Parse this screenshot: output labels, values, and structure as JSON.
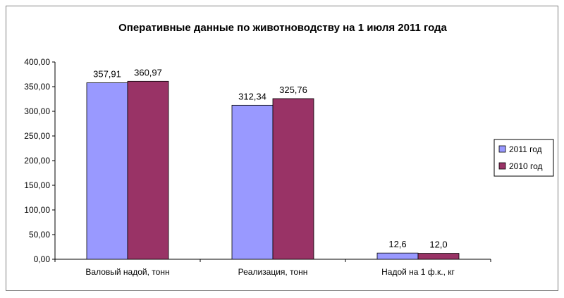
{
  "chart_data": {
    "type": "bar",
    "title": "Оперативные данные по животноводству на 1 июля 2011 года",
    "categories": [
      "Валовый надой, тонн",
      "Реализация, тонн",
      "Надой на 1 ф.к., кг"
    ],
    "series": [
      {
        "name": "2011 год",
        "color": "#9999ff",
        "values": [
          357.91,
          312.34,
          12.6
        ],
        "labels": [
          "357,91",
          "312,34",
          "12,6"
        ]
      },
      {
        "name": "2010 год",
        "color": "#993366",
        "values": [
          360.97,
          325.76,
          12.0
        ],
        "labels": [
          "360,97",
          "325,76",
          "12,0"
        ]
      }
    ],
    "ylim": [
      0,
      400
    ],
    "yticks": [
      0,
      50,
      100,
      150,
      200,
      250,
      300,
      350,
      400
    ],
    "ytick_labels": [
      "0,00",
      "50,00",
      "100,00",
      "150,00",
      "200,00",
      "250,00",
      "300,00",
      "350,00",
      "400,00"
    ],
    "xlabel": "",
    "ylabel": "",
    "grid": false,
    "legend_position": "right"
  }
}
